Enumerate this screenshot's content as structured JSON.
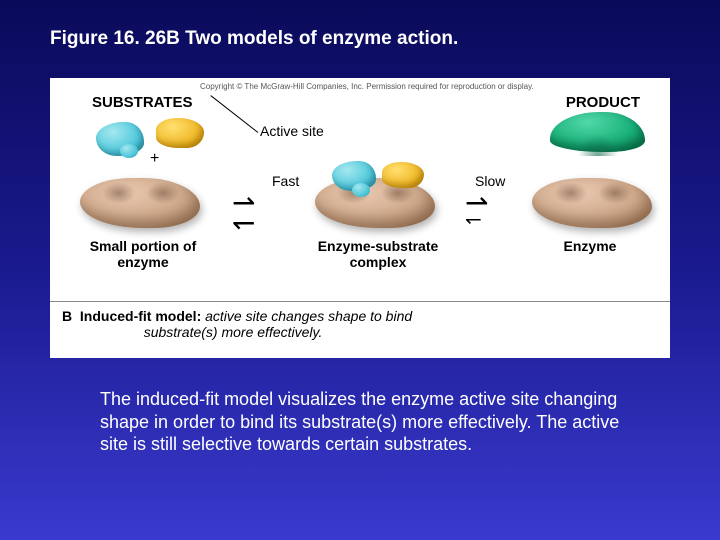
{
  "title": "Figure 16. 26B  Two models of enzyme action.",
  "copyright": "Copyright © The McGraw-Hill Companies, Inc. Permission required for reproduction or display.",
  "labels": {
    "substrates": "SUBSTRATES",
    "product": "PRODUCT",
    "active_site": "Active site",
    "fast": "Fast",
    "slow": "Slow",
    "small_enzyme": "Small portion of enzyme",
    "es_complex": "Enzyme-substrate complex",
    "enzyme": "Enzyme",
    "plus": "+"
  },
  "panel_caption": {
    "tag": "B",
    "heading": "Induced-fit model:",
    "body_l1": "active site changes shape to bind",
    "body_l2": "substrate(s) more effectively."
  },
  "body_caption": "The induced-fit model visualizes the enzyme active site changing shape in order to bind its substrate(s) more effectively. The active site is still selective towards certain substrates.",
  "colors": {
    "bg_top": "#0a0a5a",
    "bg_bottom": "#3a3acf",
    "enzyme": "#c8a080",
    "substrate_cyan": "#50c8da",
    "substrate_yellow": "#f0b828",
    "product_green": "#18b078",
    "panel_bg": "#ffffff"
  },
  "diagram": {
    "type": "infographic",
    "states": [
      {
        "name": "substrates_plus_enzyme",
        "components": [
          "cyan_substrate",
          "yellow_substrate",
          "enzyme"
        ]
      },
      {
        "name": "enzyme_substrate_complex",
        "components": [
          "enzyme",
          "cyan_substrate_bound",
          "yellow_substrate_bound"
        ]
      },
      {
        "name": "enzyme_plus_product",
        "components": [
          "enzyme",
          "green_product"
        ]
      }
    ],
    "transitions": [
      {
        "from": 0,
        "to": 1,
        "forward": "Fast",
        "reversible": true
      },
      {
        "from": 1,
        "to": 2,
        "forward": "Slow",
        "reversible": true
      }
    ]
  }
}
